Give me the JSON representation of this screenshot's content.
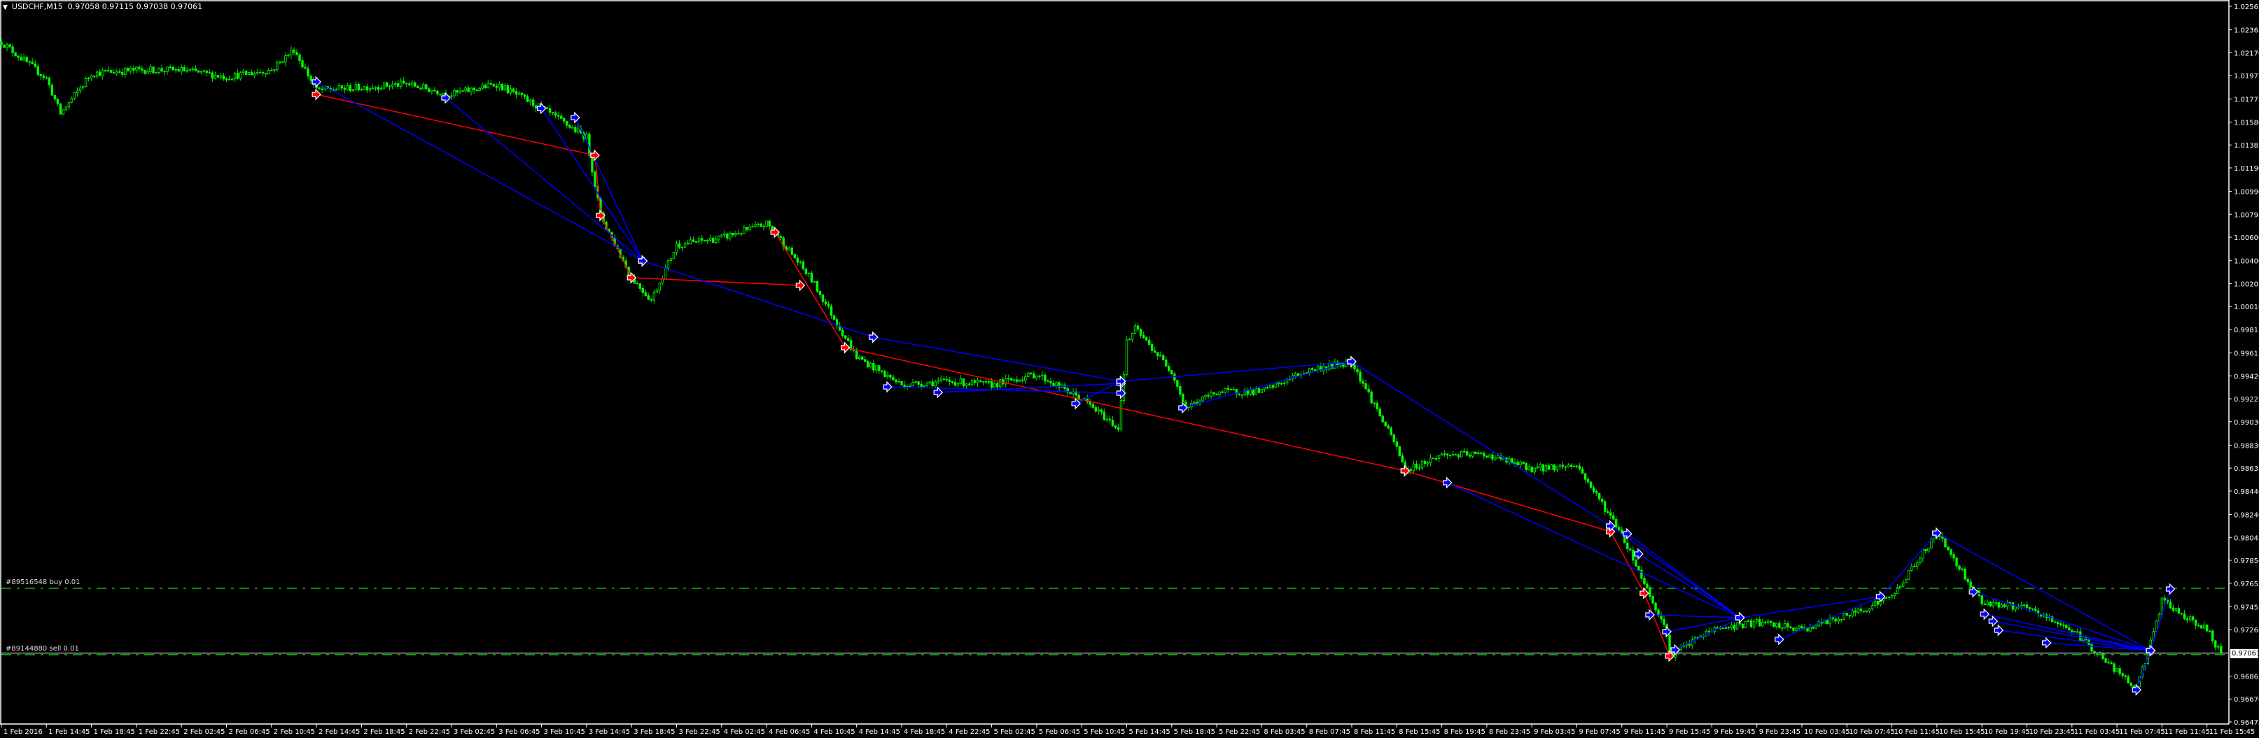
{
  "header": {
    "symbol": "USDCHF,M15",
    "ohlc": "0.97058 0.97115 0.97038 0.97061",
    "menu_icon": "triangle-down-icon"
  },
  "orders": [
    {
      "label": "#89516548 buy 0.01",
      "price": 0.97612,
      "color": "#00c000"
    },
    {
      "label": "#89144880 sell 0.01",
      "price": 0.97047,
      "color": "#00c000"
    }
  ],
  "current_price": {
    "value": 0.97061,
    "label": "0.97061",
    "line_color": "#a0a0a0"
  },
  "chart_data": {
    "type": "candlestick",
    "symbol": "USDCHF",
    "timeframe": "M15",
    "ylim": [
      0.96475,
      1.02565
    ],
    "grid": false,
    "colors": {
      "up": "#00ff00",
      "down": "#00ff00",
      "wick": "#00e000",
      "buy_line": "#0000ff",
      "sell_line": "#ff0000",
      "background": "#000000",
      "axis": "#ffffff"
    },
    "y_ticks": [
      "1.02565",
      "1.02365",
      "1.02170",
      "1.01975",
      "1.01775",
      "1.01580",
      "1.01385",
      "1.01190",
      "1.00990",
      "1.00795",
      "1.00600",
      "1.00400",
      "1.00205",
      "1.00010",
      "0.99815",
      "0.99615",
      "0.99420",
      "0.99225",
      "0.99030",
      "0.98830",
      "0.98635",
      "0.98440",
      "0.98240",
      "0.98045",
      "0.97850",
      "0.97655",
      "0.97455",
      "0.97260",
      "0.96865",
      "0.96670",
      "0.96475"
    ],
    "x_ticks": [
      "1 Feb 2016",
      "1 Feb 14:45",
      "1 Feb 18:45",
      "1 Feb 22:45",
      "2 Feb 02:45",
      "2 Feb 06:45",
      "2 Feb 10:45",
      "2 Feb 14:45",
      "2 Feb 18:45",
      "2 Feb 22:45",
      "3 Feb 02:45",
      "3 Feb 06:45",
      "3 Feb 10:45",
      "3 Feb 14:45",
      "3 Feb 18:45",
      "3 Feb 22:45",
      "4 Feb 02:45",
      "4 Feb 06:45",
      "4 Feb 10:45",
      "4 Feb 14:45",
      "4 Feb 18:45",
      "4 Feb 22:45",
      "5 Feb 02:45",
      "5 Feb 06:45",
      "5 Feb 10:45",
      "5 Feb 14:45",
      "5 Feb 18:45",
      "5 Feb 22:45",
      "8 Feb 03:45",
      "8 Feb 07:45",
      "8 Feb 11:45",
      "8 Feb 15:45",
      "8 Feb 19:45",
      "8 Feb 23:45",
      "9 Feb 03:45",
      "9 Feb 07:45",
      "9 Feb 11:45",
      "9 Feb 15:45",
      "9 Feb 19:45",
      "9 Feb 23:45",
      "10 Feb 03:45",
      "10 Feb 07:45",
      "10 Feb 11:45",
      "10 Feb 15:45",
      "10 Feb 19:45",
      "10 Feb 23:45",
      "11 Feb 03:45",
      "11 Feb 07:45",
      "11 Feb 11:45",
      "11 Feb 15:45"
    ],
    "closes": [
      [
        "1 Feb 10:45",
        1.02261
      ],
      [
        "1 Feb 14:45",
        1.0195
      ],
      [
        "1 Feb 16:00",
        1.0165
      ],
      [
        "1 Feb 18:45",
        1.01994
      ],
      [
        "1 Feb 22:45",
        1.02023
      ],
      [
        "2 Feb 02:45",
        1.02023
      ],
      [
        "2 Feb 06:45",
        1.01964
      ],
      [
        "2 Feb 10:45",
        1.02023
      ],
      [
        "2 Feb 12:45",
        1.022
      ],
      [
        "2 Feb 14:45",
        1.0185
      ],
      [
        "2 Feb 18:45",
        1.01875
      ],
      [
        "2 Feb 22:45",
        1.01904
      ],
      [
        "3 Feb 02:45",
        1.01815
      ],
      [
        "3 Feb 06:45",
        1.01904
      ],
      [
        "3 Feb 10:45",
        1.01696
      ],
      [
        "3 Feb 14:45",
        1.0145
      ],
      [
        "3 Feb 16:00",
        1.00785
      ],
      [
        "3 Feb 18:45",
        1.00255
      ],
      [
        "3 Feb 20:30",
        1.00065
      ],
      [
        "3 Feb 22:45",
        1.00535
      ],
      [
        "4 Feb 02:45",
        1.00595
      ],
      [
        "4 Feb 06:45",
        1.00714
      ],
      [
        "4 Feb 07:30",
        1.00642
      ],
      [
        "4 Feb 10:45",
        1.00237
      ],
      [
        "4 Feb 14:45",
        0.99583
      ],
      [
        "4 Feb 18:45",
        0.99344
      ],
      [
        "4 Feb 22:45",
        0.99374
      ],
      [
        "5 Feb 02:45",
        0.99344
      ],
      [
        "5 Feb 06:45",
        0.99434
      ],
      [
        "5 Feb 10:45",
        0.99225
      ],
      [
        "5 Feb 14:00",
        0.98975
      ],
      [
        "5 Feb 14:45",
        0.997
      ],
      [
        "5 Feb 15:30",
        0.99821
      ],
      [
        "5 Feb 18:45",
        0.99463
      ],
      [
        "5 Feb 20:00",
        0.99148
      ],
      [
        "5 Feb 22:45",
        0.99285
      ],
      [
        "8 Feb 03:45",
        0.99285
      ],
      [
        "8 Feb 07:45",
        0.99463
      ],
      [
        "8 Feb 11:45",
        0.99541
      ],
      [
        "8 Feb 15:45",
        0.98809
      ],
      [
        "8 Feb 16:30",
        0.98612
      ],
      [
        "8 Feb 19:45",
        0.98749
      ],
      [
        "8 Feb 23:45",
        0.98749
      ],
      [
        "9 Feb 03:45",
        0.9863
      ],
      [
        "9 Feb 07:45",
        0.9866
      ],
      [
        "9 Feb 11:45",
        0.98076
      ],
      [
        "9 Feb 15:45",
        0.97243
      ],
      [
        "9 Feb 16:00",
        0.97035
      ],
      [
        "9 Feb 19:45",
        0.97261
      ],
      [
        "9 Feb 23:45",
        0.9732
      ],
      [
        "10 Feb 03:45",
        0.97261
      ],
      [
        "10 Feb 07:45",
        0.9738
      ],
      [
        "10 Feb 11:45",
        0.97541
      ],
      [
        "10 Feb 15:45",
        0.98082
      ],
      [
        "10 Feb 19:45",
        0.97499
      ],
      [
        "10 Feb 23:45",
        0.97439
      ],
      [
        "11 Feb 03:45",
        0.97261
      ],
      [
        "11 Feb 07:45",
        0.96904
      ],
      [
        "11 Feb 09:30",
        0.96748
      ],
      [
        "11 Feb 11:45",
        0.97499
      ],
      [
        "11 Feb 15:45",
        0.97261
      ],
      [
        "11 Feb 17:00",
        0.97061
      ]
    ],
    "trades": [
      {
        "side": "sell",
        "open": [
          "2 Feb 14:45",
          1.01815
        ],
        "close": [
          "3 Feb 15:30",
          1.01297
        ]
      },
      {
        "side": "sell",
        "open": [
          "3 Feb 15:30",
          1.01297
        ],
        "close": [
          "3 Feb 16:00",
          1.00785
        ]
      },
      {
        "side": "sell",
        "open": [
          "3 Feb 16:00",
          1.00785
        ],
        "close": [
          "3 Feb 18:45",
          1.00255
        ]
      },
      {
        "side": "sell",
        "open": [
          "3 Feb 18:45",
          1.00255
        ],
        "close": [
          "4 Feb 09:45",
          1.0019
        ]
      },
      {
        "side": "sell",
        "open": [
          "4 Feb 07:30",
          1.00642
        ],
        "close": [
          "4 Feb 13:45",
          0.9966
        ]
      },
      {
        "side": "sell",
        "open": [
          "4 Feb 13:45",
          0.9966
        ],
        "close": [
          "8 Feb 16:30",
          0.98612
        ]
      },
      {
        "side": "sell",
        "open": [
          "8 Feb 16:30",
          0.98612
        ],
        "close": [
          "9 Feb 10:45",
          0.98094
        ]
      },
      {
        "side": "sell",
        "open": [
          "9 Feb 10:45",
          0.98094
        ],
        "close": [
          "9 Feb 13:45",
          0.9757
        ]
      },
      {
        "side": "sell",
        "open": [
          "9 Feb 13:45",
          0.9757
        ],
        "close": [
          "9 Feb 16:00",
          0.97035
        ]
      },
      {
        "side": "buy",
        "open": [
          "2 Feb 14:45",
          1.01922
        ],
        "close": [
          "3 Feb 19:45",
          1.00398
        ]
      },
      {
        "side": "buy",
        "open": [
          "3 Feb 02:15",
          1.01785
        ],
        "close": [
          "3 Feb 19:45",
          1.00398
        ]
      },
      {
        "side": "buy",
        "open": [
          "3 Feb 10:45",
          1.01696
        ],
        "close": [
          "3 Feb 19:45",
          1.00398
        ]
      },
      {
        "side": "buy",
        "open": [
          "3 Feb 13:45",
          1.01618
        ],
        "close": [
          "3 Feb 19:45",
          1.00398
        ]
      },
      {
        "side": "buy",
        "open": [
          "3 Feb 19:45",
          1.00398
        ],
        "close": [
          "4 Feb 16:15",
          0.99749
        ]
      },
      {
        "side": "buy",
        "open": [
          "4 Feb 16:15",
          0.99749
        ],
        "close": [
          "5 Feb 14:15",
          0.99374
        ]
      },
      {
        "side": "buy",
        "open": [
          "4 Feb 17:30",
          0.99326
        ],
        "close": [
          "5 Feb 14:15",
          0.99273
        ]
      },
      {
        "side": "buy",
        "open": [
          "4 Feb 22:00",
          0.99279
        ],
        "close": [
          "5 Feb 14:15",
          0.99356
        ]
      },
      {
        "side": "buy",
        "open": [
          "5 Feb 10:15",
          0.99184
        ],
        "close": [
          "5 Feb 14:15",
          0.99374
        ]
      },
      {
        "side": "buy",
        "open": [
          "5 Feb 14:15",
          0.99374
        ],
        "close": [
          "8 Feb 11:45",
          0.99541
        ]
      },
      {
        "side": "buy",
        "open": [
          "5 Feb 19:45",
          0.99148
        ],
        "close": [
          "8 Feb 11:45",
          0.99541
        ]
      },
      {
        "side": "buy",
        "open": [
          "8 Feb 11:45",
          0.99541
        ],
        "close": [
          "9 Feb 10:45",
          0.98142
        ]
      },
      {
        "side": "buy",
        "open": [
          "8 Feb 20:15",
          0.98511
        ],
        "close": [
          "9 Feb 22:15",
          0.97362
        ]
      },
      {
        "side": "buy",
        "open": [
          "9 Feb 10:45",
          0.98142
        ],
        "close": [
          "9 Feb 22:15",
          0.97362
        ]
      },
      {
        "side": "buy",
        "open": [
          "9 Feb 12:15",
          0.98076
        ],
        "close": [
          "9 Feb 22:15",
          0.97362
        ]
      },
      {
        "side": "buy",
        "open": [
          "9 Feb 13:15",
          0.97904
        ],
        "close": [
          "9 Feb 22:15",
          0.97362
        ]
      },
      {
        "side": "buy",
        "open": [
          "9 Feb 14:15",
          0.97386
        ],
        "close": [
          "9 Feb 22:15",
          0.97362
        ]
      },
      {
        "side": "buy",
        "open": [
          "9 Feb 15:45",
          0.97243
        ],
        "close": [
          "9 Feb 22:15",
          0.97362
        ]
      },
      {
        "side": "buy",
        "open": [
          "9 Feb 16:30",
          0.97088
        ],
        "close": [
          "9 Feb 22:15",
          0.97362
        ]
      },
      {
        "side": "buy",
        "open": [
          "9 Feb 22:15",
          0.97362
        ],
        "close": [
          "10 Feb 10:45",
          0.97541
        ]
      },
      {
        "side": "buy",
        "open": [
          "10 Feb 01:45",
          0.97177
        ],
        "close": [
          "10 Feb 10:45",
          0.97541
        ]
      },
      {
        "side": "buy",
        "open": [
          "10 Feb 10:45",
          0.97541
        ],
        "close": [
          "10 Feb 15:45",
          0.98082
        ]
      },
      {
        "side": "buy",
        "open": [
          "10 Feb 15:45",
          0.98082
        ],
        "close": [
          "11 Feb 10:45",
          0.97082
        ]
      },
      {
        "side": "buy",
        "open": [
          "10 Feb 19:00",
          0.97582
        ],
        "close": [
          "11 Feb 10:45",
          0.97082
        ]
      },
      {
        "side": "buy",
        "open": [
          "10 Feb 20:00",
          0.97392
        ],
        "close": [
          "11 Feb 10:45",
          0.97082
        ]
      },
      {
        "side": "buy",
        "open": [
          "10 Feb 20:45",
          0.97332
        ],
        "close": [
          "11 Feb 10:45",
          0.97082
        ]
      },
      {
        "side": "buy",
        "open": [
          "10 Feb 21:15",
          0.97255
        ],
        "close": [
          "11 Feb 10:45",
          0.97082
        ]
      },
      {
        "side": "buy",
        "open": [
          "11 Feb 01:30",
          0.97148
        ],
        "close": [
          "11 Feb 10:45",
          0.97082
        ]
      },
      {
        "side": "buy",
        "open": [
          "11 Feb 09:30",
          0.96748
        ],
        "close": [
          "11 Feb 10:45",
          0.97082
        ]
      },
      {
        "side": "buy",
        "open": [
          "11 Feb 10:45",
          0.97082
        ],
        "close": [
          "11 Feb 12:30",
          0.97606
        ]
      }
    ]
  }
}
